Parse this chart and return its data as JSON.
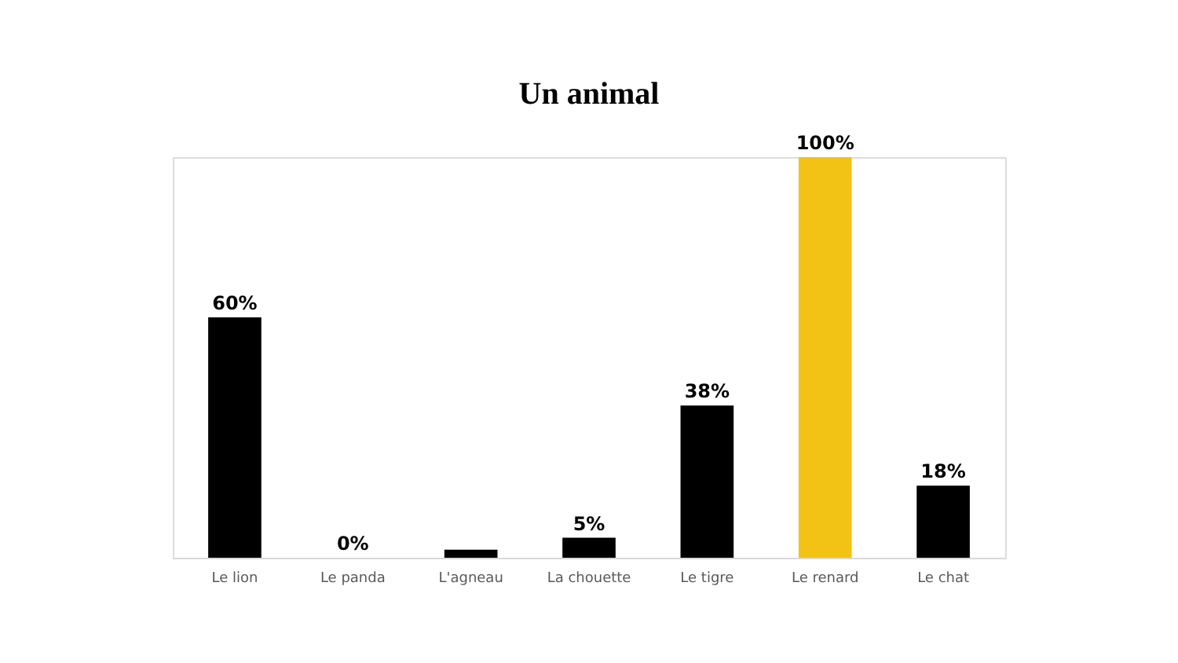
{
  "chart_data": {
    "type": "bar",
    "title": "Un animal",
    "categories": [
      "Le lion",
      "Le panda",
      "L'agneau",
      "La chouette",
      "Le tigre",
      "Le renard",
      "Le chat"
    ],
    "values": [
      60,
      0,
      2,
      5,
      38,
      100,
      18
    ],
    "colors": [
      "#000000",
      "#000000",
      "#000000",
      "#000000",
      "#000000",
      "#f2c314",
      "#000000"
    ],
    "value_labels": [
      "60%",
      "0%",
      null,
      "5%",
      "38%",
      "100%",
      "18%"
    ],
    "tick_labels": "x"
  }
}
